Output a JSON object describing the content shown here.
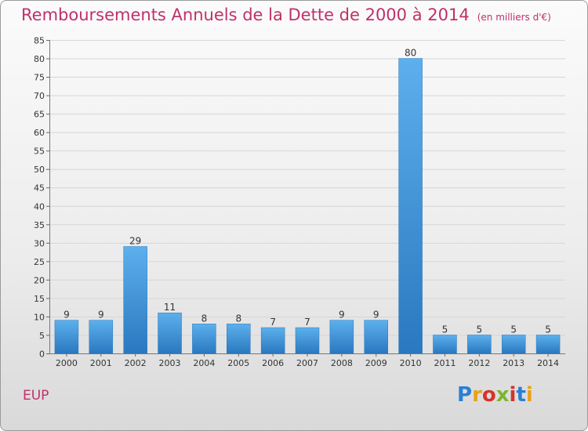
{
  "chart_data": {
    "type": "bar",
    "title": "Remboursements Annuels de la Dette de 2000 à 2014",
    "unit_note": "(en milliers d'€)",
    "categories": [
      "2000",
      "2001",
      "2002",
      "2003",
      "2004",
      "2005",
      "2006",
      "2007",
      "2008",
      "2009",
      "2010",
      "2011",
      "2012",
      "2013",
      "2014"
    ],
    "values": [
      9,
      9,
      29,
      11,
      8,
      8,
      7,
      7,
      9,
      9,
      80,
      5,
      5,
      5,
      5
    ],
    "ylim": [
      0,
      85
    ],
    "yticks": [
      0,
      5,
      10,
      15,
      20,
      25,
      30,
      35,
      40,
      45,
      50,
      55,
      60,
      65,
      70,
      75,
      80,
      85
    ],
    "grid": true,
    "bar_color": "#3d94d6"
  },
  "footer": {
    "commune": "EUP",
    "logo_text": "Proxiti",
    "logo_colors": [
      "#2a7fd4",
      "#e8a21a",
      "#d6332a",
      "#7ab62e",
      "#d6332a",
      "#2a7fd4",
      "#e8a21a"
    ]
  }
}
